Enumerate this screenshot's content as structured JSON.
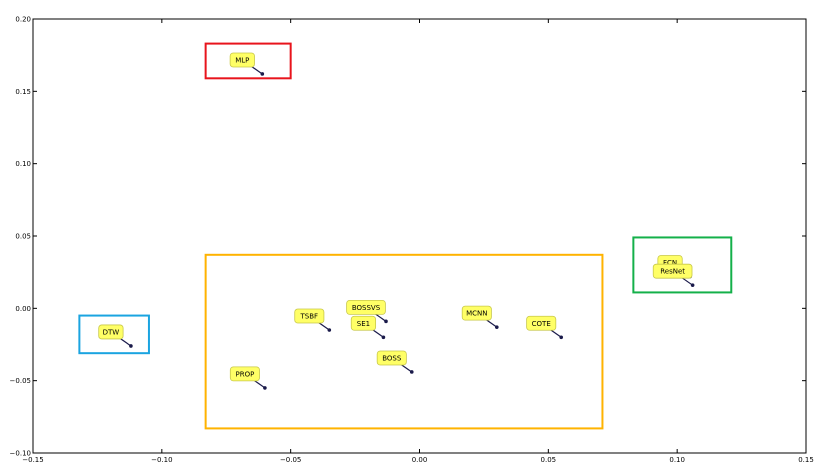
{
  "chart_data": {
    "type": "scatter",
    "xlim": [
      -0.15,
      0.15
    ],
    "ylim": [
      -0.1,
      0.2
    ],
    "xticks": [
      "−0.15",
      "−0.10",
      "−0.05",
      "0.00",
      "0.05",
      "0.10",
      "0.15"
    ],
    "yticks": [
      "−0.10",
      "−0.05",
      "0.00",
      "0.05",
      "0.10",
      "0.15",
      "0.20"
    ],
    "grid": false,
    "points": [
      {
        "label": "MLP",
        "x": -0.061,
        "y": 0.162
      },
      {
        "label": "DTW",
        "x": -0.112,
        "y": -0.026
      },
      {
        "label": "FCN",
        "x": 0.105,
        "y": 0.022
      },
      {
        "label": "ResNet",
        "x": 0.106,
        "y": 0.016
      },
      {
        "label": "TSBF",
        "x": -0.035,
        "y": -0.015
      },
      {
        "label": "BOSSVS",
        "x": -0.013,
        "y": -0.009
      },
      {
        "label": "SE1",
        "x": -0.014,
        "y": -0.02
      },
      {
        "label": "BOSS",
        "x": -0.003,
        "y": -0.044
      },
      {
        "label": "MCNN",
        "x": 0.03,
        "y": -0.013
      },
      {
        "label": "COTE",
        "x": 0.055,
        "y": -0.02
      },
      {
        "label": "PROP",
        "x": -0.06,
        "y": -0.055
      }
    ],
    "groups": [
      {
        "color": "#e8141c",
        "x": [
          -0.083,
          -0.05
        ],
        "y": [
          0.159,
          0.183
        ]
      },
      {
        "color": "#1aa4e0",
        "x": [
          -0.132,
          -0.105
        ],
        "y": [
          -0.031,
          -0.005
        ]
      },
      {
        "color": "#14b04a",
        "x": [
          0.083,
          0.121
        ],
        "y": [
          0.011,
          0.049
        ]
      },
      {
        "color": "#ffb300",
        "x": [
          -0.083,
          0.071
        ],
        "y": [
          -0.083,
          0.037
        ]
      }
    ],
    "colors": {
      "label_fill": "#ffff66",
      "label_stroke": "#c8c84a",
      "point": "#1a1a4a"
    }
  }
}
